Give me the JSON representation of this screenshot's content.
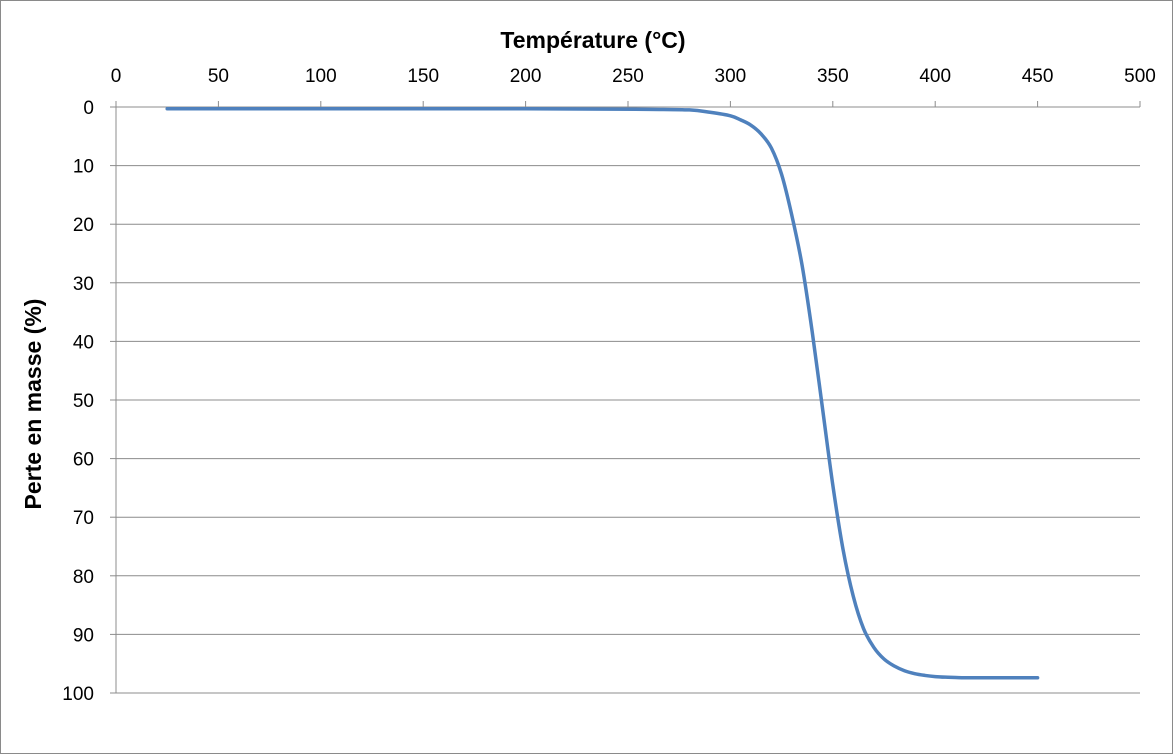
{
  "chart_data": {
    "type": "line",
    "xlabel": "Température (°C)",
    "ylabel": "Perte en masse (%)",
    "xlim": [
      0,
      500
    ],
    "ylim": [
      0,
      100
    ],
    "y_inverted": true,
    "x_axis_position": "top",
    "x_ticks": [
      0,
      50,
      100,
      150,
      200,
      250,
      300,
      350,
      400,
      450,
      500
    ],
    "y_ticks": [
      0,
      10,
      20,
      30,
      40,
      50,
      60,
      70,
      80,
      90,
      100
    ],
    "grid": "horizontal",
    "legend": "none",
    "series": [
      {
        "color": "#4f81bd",
        "x": [
          25,
          100,
          200,
          260,
          280,
          290,
          300,
          305,
          310,
          315,
          320,
          325,
          330,
          335,
          340,
          345,
          350,
          355,
          360,
          365,
          370,
          375,
          380,
          385,
          390,
          395,
          400,
          405,
          410,
          415,
          430,
          450
        ],
        "y": [
          0.3,
          0.3,
          0.3,
          0.4,
          0.5,
          0.9,
          1.5,
          2.2,
          3.1,
          4.6,
          7.0,
          11.5,
          18.5,
          27.0,
          38.5,
          51.5,
          64.5,
          75.5,
          83.5,
          89.0,
          92.2,
          94.2,
          95.4,
          96.2,
          96.7,
          97.0,
          97.2,
          97.3,
          97.35,
          97.4,
          97.4,
          97.4
        ]
      }
    ]
  }
}
